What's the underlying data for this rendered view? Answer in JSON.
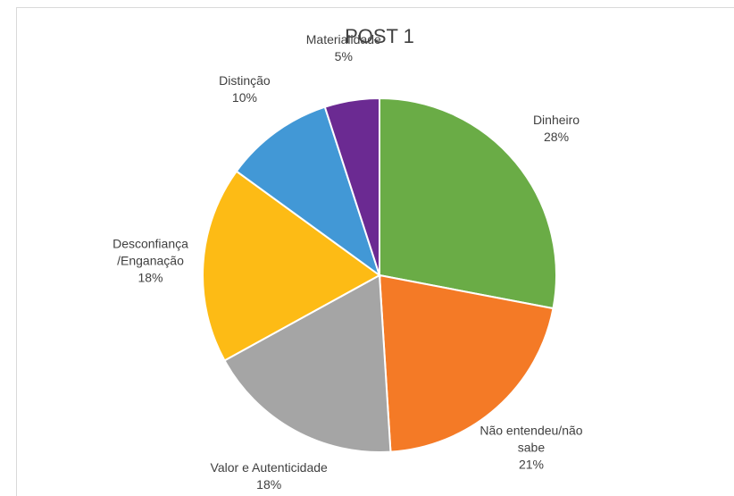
{
  "chart_data": {
    "type": "pie",
    "title": "POST 1",
    "categories": [
      "Dinheiro",
      "Não entendeu/não sabe",
      "Valor e Autenticidade",
      "Desconfiança /Enganação",
      "Distinção",
      "Materialidade"
    ],
    "values": [
      28,
      21,
      18,
      18,
      10,
      5
    ],
    "value_labels": [
      "28%",
      "21%",
      "18%",
      "18%",
      "10%",
      "5%"
    ],
    "colors": [
      "#6aac46",
      "#f47a26",
      "#a5a5a5",
      "#fdbb15",
      "#4298d6",
      "#6b2a92"
    ]
  }
}
